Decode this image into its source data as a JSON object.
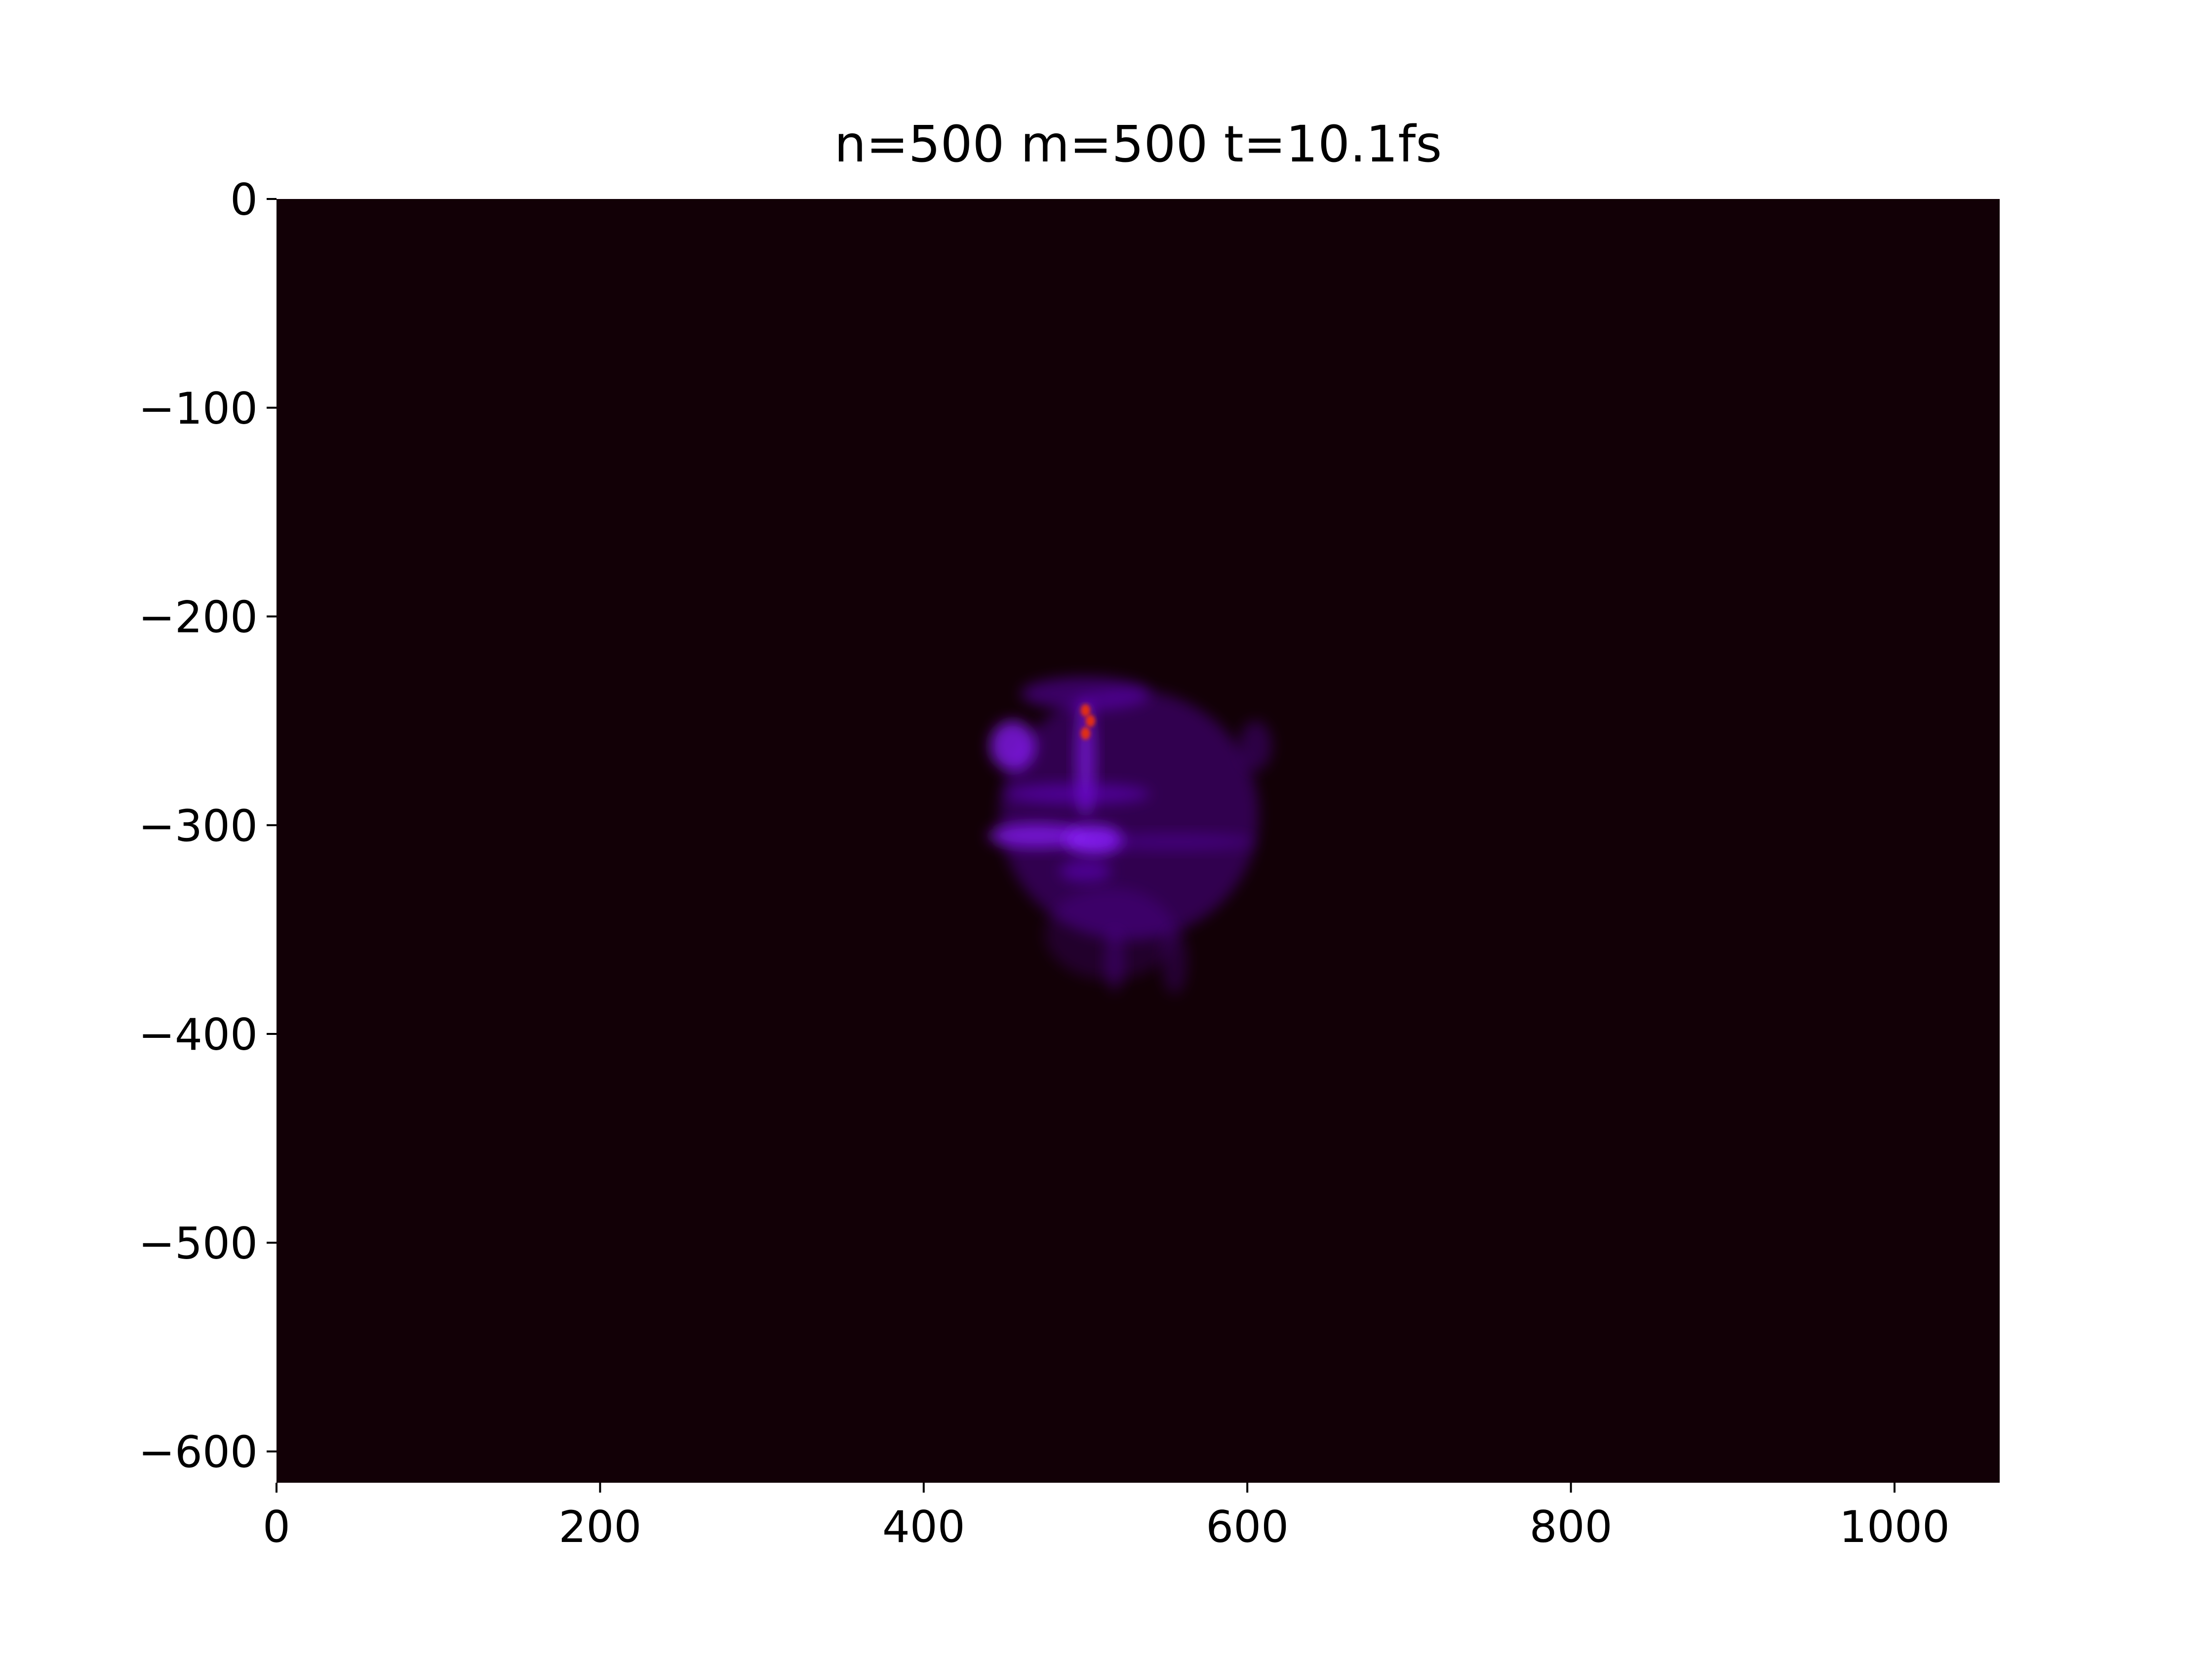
{
  "chart_data": {
    "type": "heatmap",
    "title": "n=500 m=500 t=10.1fs",
    "xlabel": "",
    "ylabel": "",
    "xlim": [
      0,
      1065
    ],
    "ylim": [
      -615,
      0
    ],
    "x_ticks": [
      0,
      200,
      400,
      600,
      800,
      1000
    ],
    "y_ticks": [
      0,
      -100,
      -200,
      -300,
      -400,
      -500,
      -600
    ],
    "x_tick_labels": [
      "0",
      "200",
      "400",
      "600",
      "800",
      "1000"
    ],
    "y_tick_labels": [
      "0",
      "−100",
      "−200",
      "−300",
      "−400",
      "−500",
      "−600"
    ],
    "grid": false,
    "colormap": "gnuplot",
    "background_color": "#120006",
    "colors": {
      "low": "#120006",
      "mid": "#6a00d6",
      "high": "#8c1cff",
      "peak": "#e8300a"
    },
    "features": [
      {
        "label": "main-blob",
        "x": 527,
        "y": -295,
        "rx": 80,
        "ry": 60,
        "intensity": 0.35
      },
      {
        "label": "left-lobe",
        "x": 455,
        "y": -262,
        "rx": 14,
        "ry": 12,
        "intensity": 0.75
      },
      {
        "label": "upper-rim",
        "x": 500,
        "y": -237,
        "rx": 40,
        "ry": 8,
        "intensity": 0.45
      },
      {
        "label": "upper-column",
        "x": 500,
        "y": -268,
        "rx": 6,
        "ry": 28,
        "intensity": 0.6
      },
      {
        "label": "band-upper",
        "x": 495,
        "y": -285,
        "rx": 45,
        "ry": 5,
        "intensity": 0.5
      },
      {
        "label": "band-left",
        "x": 470,
        "y": -305,
        "rx": 30,
        "ry": 6,
        "intensity": 0.7
      },
      {
        "label": "band-center",
        "x": 505,
        "y": -307,
        "rx": 18,
        "ry": 7,
        "intensity": 0.85
      },
      {
        "label": "band-right",
        "x": 555,
        "y": -308,
        "rx": 50,
        "ry": 4,
        "intensity": 0.3
      },
      {
        "label": "lower-spot",
        "x": 500,
        "y": -322,
        "rx": 16,
        "ry": 5,
        "intensity": 0.5
      },
      {
        "label": "right-lobe",
        "x": 605,
        "y": -262,
        "rx": 10,
        "ry": 12,
        "intensity": 0.3
      },
      {
        "label": "lower-tail",
        "x": 515,
        "y": -352,
        "rx": 40,
        "ry": 22,
        "intensity": 0.18
      },
      {
        "label": "lower-streak-1",
        "x": 518,
        "y": -365,
        "rx": 6,
        "ry": 15,
        "intensity": 0.25
      },
      {
        "label": "lower-streak-2",
        "x": 555,
        "y": -365,
        "rx": 8,
        "ry": 16,
        "intensity": 0.22
      },
      {
        "label": "hotspot-1",
        "x": 500,
        "y": -245,
        "rx": 3,
        "ry": 3,
        "intensity": 1.0
      },
      {
        "label": "hotspot-2",
        "x": 503,
        "y": -250,
        "rx": 3,
        "ry": 3,
        "intensity": 0.95
      },
      {
        "label": "hotspot-3",
        "x": 500,
        "y": -256,
        "rx": 3,
        "ry": 3,
        "intensity": 0.95
      }
    ]
  }
}
